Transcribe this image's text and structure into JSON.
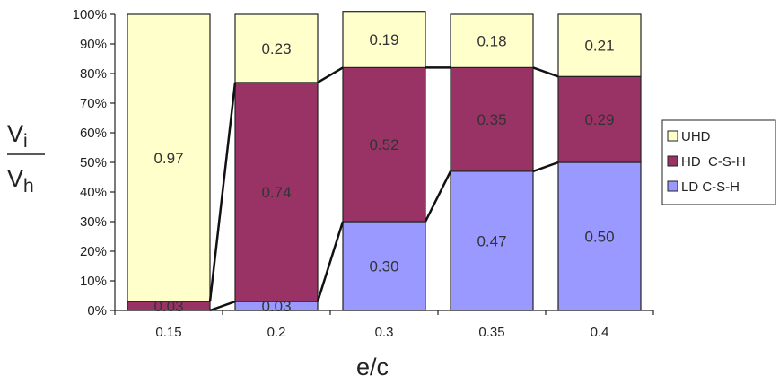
{
  "chart_data": {
    "type": "bar",
    "stacked": true,
    "categories": [
      "0.15",
      "0.2",
      "0.3",
      "0.35",
      "0.4"
    ],
    "series": [
      {
        "name": "LD C-S-H",
        "values": [
          0.0,
          0.03,
          0.3,
          0.47,
          0.5
        ],
        "labels": [
          "",
          "0.03",
          "0.30",
          "0.47",
          "0.50"
        ],
        "color": "#9999ff"
      },
      {
        "name": "HD  C-S-H",
        "values": [
          0.03,
          0.74,
          0.52,
          0.35,
          0.29
        ],
        "labels": [
          "0.03",
          "0.74",
          "0.52",
          "0.35",
          "0.29"
        ],
        "color": "#993366"
      },
      {
        "name": "UHD",
        "values": [
          0.97,
          0.23,
          0.19,
          0.18,
          0.21
        ],
        "labels": [
          "0.97",
          "0.23",
          "0.19",
          "0.18",
          "0.21"
        ],
        "color": "#ffffcc"
      }
    ],
    "yticks": [
      "0%",
      "10%",
      "20%",
      "30%",
      "40%",
      "50%",
      "60%",
      "70%",
      "80%",
      "90%",
      "100%"
    ],
    "ylim": [
      0,
      1
    ],
    "xlabel": "e/c",
    "ylabel": {
      "numerator": "V",
      "numerator_sub": "i",
      "denominator": "V",
      "denominator_sub": "h"
    },
    "legend": {
      "position": "right",
      "order": [
        "UHD",
        "HD  C-S-H",
        "LD C-S-H"
      ]
    },
    "grid": false
  }
}
